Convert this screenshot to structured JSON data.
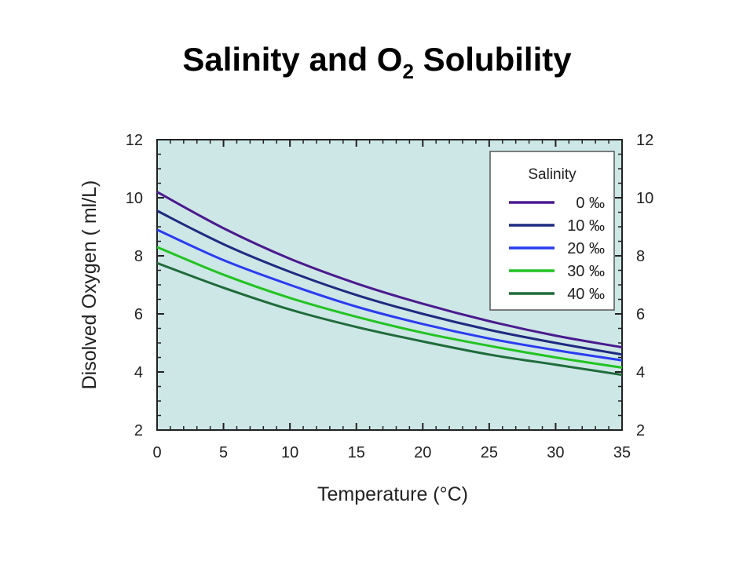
{
  "title": {
    "main": "Salinity and O",
    "sub": "2",
    "suffix": " Solubility"
  },
  "chart_data": {
    "type": "line",
    "xlabel": "Temperature (°C)",
    "ylabel": "Disolved Oxygen ( ml/L)",
    "xlim": [
      0,
      35
    ],
    "ylim": [
      2,
      12
    ],
    "x_ticks": [
      0,
      5,
      10,
      15,
      20,
      25,
      30,
      35
    ],
    "y_ticks": [
      2,
      4,
      6,
      8,
      10,
      12
    ],
    "grid": false,
    "legend_placement": "top-right",
    "legend_title": "Salinity",
    "x": [
      0,
      5,
      10,
      15,
      20,
      25,
      30,
      35
    ],
    "series": [
      {
        "name": "0 ‰",
        "color": "#4b1a8e",
        "values": [
          10.2,
          8.95,
          7.9,
          7.05,
          6.35,
          5.75,
          5.25,
          4.85
        ]
      },
      {
        "name": "10 ‰",
        "color": "#1f2a80",
        "values": [
          9.55,
          8.4,
          7.45,
          6.65,
          6.0,
          5.45,
          5.0,
          4.6
        ]
      },
      {
        "name": "20 ‰",
        "color": "#2a3cf0",
        "values": [
          8.9,
          7.85,
          7.0,
          6.25,
          5.65,
          5.15,
          4.75,
          4.4
        ]
      },
      {
        "name": "30 ‰",
        "color": "#22c322",
        "values": [
          8.3,
          7.35,
          6.55,
          5.9,
          5.35,
          4.9,
          4.5,
          4.15
        ]
      },
      {
        "name": "40 ‰",
        "color": "#1f6b3a",
        "values": [
          7.75,
          6.9,
          6.15,
          5.55,
          5.05,
          4.6,
          4.25,
          3.9
        ]
      }
    ]
  }
}
